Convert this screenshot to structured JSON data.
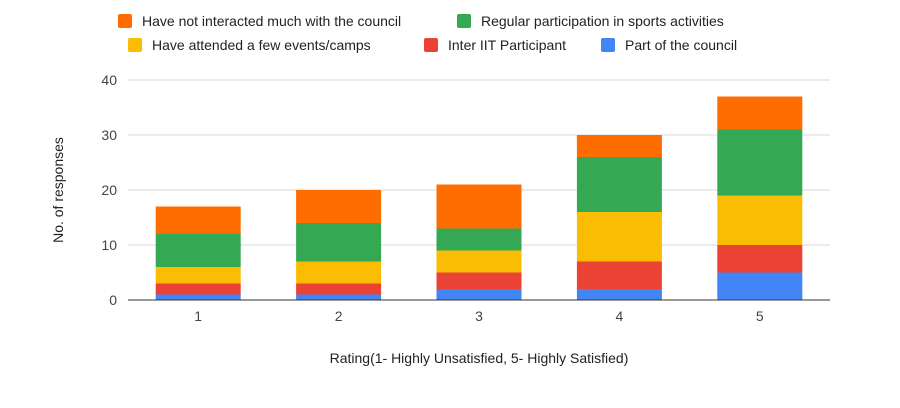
{
  "chart_data": {
    "type": "bar",
    "stacked": true,
    "title": "",
    "xlabel": "Rating(1- Highly Unsatisfied, 5- Highly Satisfied)",
    "ylabel": "No. of responses",
    "categories": [
      "1",
      "2",
      "3",
      "4",
      "5"
    ],
    "ylim": [
      0,
      40
    ],
    "yticks": [
      "0",
      "10",
      "20",
      "30",
      "40"
    ],
    "grid": true,
    "legend_position": "top",
    "series": [
      {
        "name": "Part of the council",
        "color": "#4285F4",
        "values": [
          1,
          1,
          2,
          2,
          5
        ]
      },
      {
        "name": "Inter IIT Participant",
        "color": "#EA4335",
        "values": [
          2,
          2,
          3,
          5,
          5
        ]
      },
      {
        "name": "Have attended a few events/camps",
        "color": "#FBBC04",
        "values": [
          3,
          4,
          4,
          9,
          9
        ]
      },
      {
        "name": "Regular participation in sports activities",
        "color": "#34A853",
        "values": [
          6,
          7,
          4,
          10,
          12
        ]
      },
      {
        "name": "Have not interacted much with the council",
        "color": "#FF6D01",
        "values": [
          5,
          6,
          8,
          4,
          6
        ]
      }
    ]
  }
}
